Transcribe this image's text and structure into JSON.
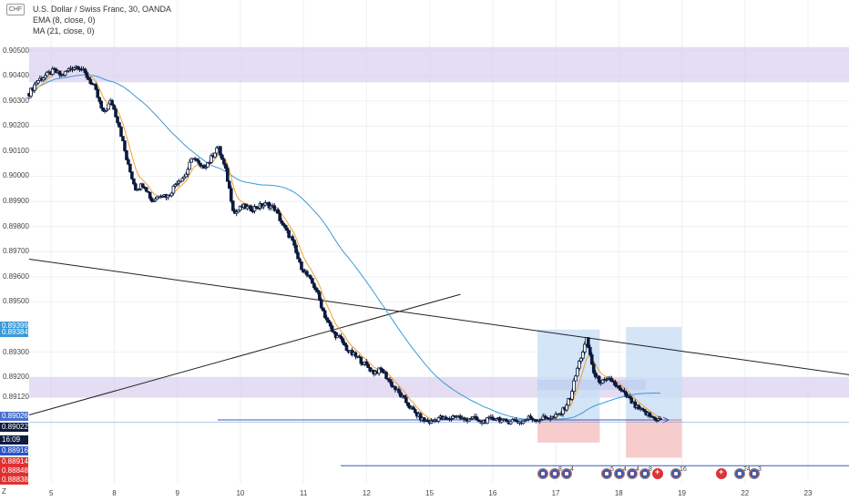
{
  "header": {
    "currency_badge": "CHF",
    "symbol_line": "U.S. Dollar / Swiss Franc, 30, OANDA",
    "indicators": [
      "EMA (8, close, 0)",
      "MA (21, close, 0)"
    ]
  },
  "colors": {
    "candles": "#0d1b3e",
    "ema": "#f0a030",
    "ma": "#3a9ad9",
    "zone": "#d8cfee",
    "trendline": "#222222",
    "hline": "#3a5bb8",
    "profit_box": "#c9def5",
    "loss_box": "#f6c6c6"
  },
  "price_labels": [
    {
      "text": "0.89399",
      "color": "#3a9ad9"
    },
    {
      "text": "0.89384",
      "color": "#3a9ad9"
    },
    {
      "text": "0.89026",
      "color": "#4a6fcf"
    },
    {
      "text": "0.89022",
      "color": "#0d1b3e"
    },
    {
      "text": "16:09",
      "color": "#0d1b3e"
    },
    {
      "text": "0.88916",
      "color": "#2a54c8"
    },
    {
      "text": "0.88914",
      "color": "#e03030"
    },
    {
      "text": "0.88848",
      "color": "#e03030"
    },
    {
      "text": "0.88838",
      "color": "#e03030"
    }
  ],
  "events": [
    {
      "kind": "us",
      "num": ""
    },
    {
      "kind": "us",
      "num": "8"
    },
    {
      "kind": "us",
      "num": "4"
    },
    {
      "kind": "us",
      "num": "5"
    },
    {
      "kind": "us",
      "num": "4"
    },
    {
      "kind": "us",
      "num": "4"
    },
    {
      "kind": "us",
      "num": "8"
    },
    {
      "kind": "ch",
      "num": ""
    },
    {
      "kind": "us",
      "num": "16"
    },
    {
      "kind": "ch",
      "num": ""
    },
    {
      "kind": "us",
      "num": "24"
    },
    {
      "kind": "us",
      "num": "3"
    }
  ],
  "z_label": "Z",
  "chart_data": {
    "type": "candlestick",
    "title": "U.S. Dollar / Swiss Franc, 30, OANDA",
    "x_ticks": [
      "5",
      "8",
      "9",
      "10",
      "11",
      "12",
      "15",
      "16",
      "17",
      "18",
      "19",
      "22",
      "23"
    ],
    "y_ticks": [
      "0.90500",
      "0.90400",
      "0.90300",
      "0.90200",
      "0.90100",
      "0.90000",
      "0.89900",
      "0.89800",
      "0.89700",
      "0.89600",
      "0.89500",
      "0.89300",
      "0.89200",
      "0.89120"
    ],
    "ylim": [
      0.8878,
      0.906
    ],
    "x_range": [
      0,
      50
    ],
    "close_path": [
      [
        0.0,
        0.9033
      ],
      [
        0.5,
        0.9038
      ],
      [
        1.0,
        0.904
      ],
      [
        1.5,
        0.9042
      ],
      [
        2.0,
        0.904
      ],
      [
        2.5,
        0.9043
      ],
      [
        3.0,
        0.9044
      ],
      [
        3.5,
        0.904
      ],
      [
        4.0,
        0.9035
      ],
      [
        4.5,
        0.9025
      ],
      [
        5.0,
        0.903
      ],
      [
        5.5,
        0.902
      ],
      [
        6.0,
        0.9005
      ],
      [
        6.5,
        0.8995
      ],
      [
        7.0,
        0.8997
      ],
      [
        7.5,
        0.899
      ],
      [
        8.0,
        0.8993
      ],
      [
        8.5,
        0.8992
      ],
      [
        9.0,
        0.8998
      ],
      [
        9.5,
        0.9
      ],
      [
        10.0,
        0.9008
      ],
      [
        10.5,
        0.9003
      ],
      [
        11.0,
        0.9006
      ],
      [
        11.5,
        0.9012
      ],
      [
        12.0,
        0.9002
      ],
      [
        12.5,
        0.8985
      ],
      [
        13.0,
        0.8988
      ],
      [
        13.5,
        0.8987
      ],
      [
        14.0,
        0.8988
      ],
      [
        14.5,
        0.8989
      ],
      [
        15.0,
        0.8987
      ],
      [
        15.5,
        0.898
      ],
      [
        16.0,
        0.8975
      ],
      [
        16.5,
        0.8965
      ],
      [
        17.0,
        0.896
      ],
      [
        17.5,
        0.8955
      ],
      [
        18.0,
        0.8945
      ],
      [
        18.5,
        0.8938
      ],
      [
        19.0,
        0.8935
      ],
      [
        19.5,
        0.893
      ],
      [
        20.0,
        0.8928
      ],
      [
        20.5,
        0.8925
      ],
      [
        21.0,
        0.8922
      ],
      [
        21.5,
        0.8923
      ],
      [
        22.0,
        0.8918
      ],
      [
        22.5,
        0.8914
      ],
      [
        23.0,
        0.891
      ],
      [
        23.5,
        0.8906
      ],
      [
        24.0,
        0.8903
      ],
      [
        24.5,
        0.8902
      ],
      [
        25.0,
        0.8904
      ],
      [
        25.5,
        0.8903
      ],
      [
        26.0,
        0.8905
      ],
      [
        26.5,
        0.8903
      ],
      [
        27.0,
        0.8904
      ],
      [
        27.5,
        0.8902
      ],
      [
        28.0,
        0.8903
      ],
      [
        28.5,
        0.8904
      ],
      [
        29.0,
        0.8902
      ],
      [
        29.5,
        0.8903
      ],
      [
        30.0,
        0.8902
      ],
      [
        30.5,
        0.8904
      ],
      [
        31.0,
        0.8903
      ],
      [
        31.5,
        0.8904
      ],
      [
        32.0,
        0.8904
      ],
      [
        32.5,
        0.8906
      ],
      [
        33.0,
        0.8912
      ],
      [
        33.5,
        0.8925
      ],
      [
        34.0,
        0.8935
      ],
      [
        34.5,
        0.892
      ],
      [
        35.0,
        0.8918
      ],
      [
        35.5,
        0.8919
      ],
      [
        36.0,
        0.8915
      ],
      [
        36.5,
        0.8912
      ],
      [
        37.0,
        0.8908
      ],
      [
        37.5,
        0.8906
      ],
      [
        38.0,
        0.8904
      ],
      [
        38.5,
        0.8903
      ]
    ],
    "ema_period": 8,
    "ma_period": 21,
    "zones": [
      {
        "y1": 0.90514,
        "y2": 0.90374
      },
      {
        "y1": 0.892,
        "y2": 0.8912
      }
    ],
    "h_lines": [
      0.8903,
      0.88848
    ],
    "trendlines": [
      {
        "p1": [
          0.0,
          0.8967
        ],
        "p2": [
          50.0,
          0.8921
        ]
      },
      {
        "p1": [
          0.0,
          0.8905
        ],
        "p2": [
          26.3,
          0.8953
        ]
      }
    ],
    "positions": [
      {
        "x1": 31.0,
        "x2": 34.8,
        "entry": 0.8903,
        "target": 0.8939,
        "stop": 0.8894
      },
      {
        "x1": 36.4,
        "x2": 39.8,
        "entry": 0.8903,
        "target": 0.894,
        "stop": 0.8888
      }
    ],
    "zone_overlay": {
      "x1": 31.0,
      "x2": 37.6,
      "y1": 0.8919,
      "y2": 0.8915
    },
    "current_price": 0.89022
  }
}
